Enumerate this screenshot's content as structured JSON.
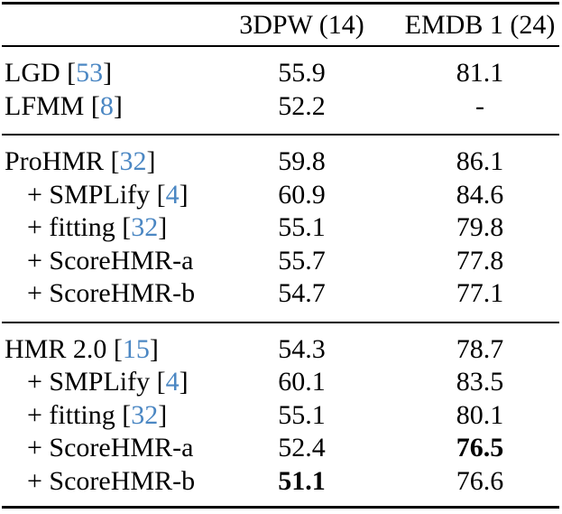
{
  "colors": {
    "text": "#000000",
    "citation_link": "#4b87c3",
    "rule": "#000000",
    "background": "#ffffff"
  },
  "table": {
    "header": {
      "method_col": "",
      "col1": "3DPW (14)",
      "col2": "EMDB 1 (24)"
    },
    "sections": [
      {
        "rows": [
          {
            "pre": "LGD [",
            "cite": "53",
            "post": "]",
            "indent": false,
            "v1": "55.9",
            "v1_bold": false,
            "v2": "81.1",
            "v2_bold": false
          },
          {
            "pre": "LFMM [",
            "cite": "8",
            "post": "]",
            "indent": false,
            "v1": "52.2",
            "v1_bold": false,
            "v2": "-",
            "v2_bold": false
          }
        ]
      },
      {
        "rows": [
          {
            "pre": "ProHMR [",
            "cite": "32",
            "post": "]",
            "indent": false,
            "v1": "59.8",
            "v1_bold": false,
            "v2": "86.1",
            "v2_bold": false
          },
          {
            "pre": "+ SMPLify [",
            "cite": "4",
            "post": "]",
            "indent": true,
            "v1": "60.9",
            "v1_bold": false,
            "v2": "84.6",
            "v2_bold": false
          },
          {
            "pre": "+ fitting [",
            "cite": "32",
            "post": "]",
            "indent": true,
            "v1": "55.1",
            "v1_bold": false,
            "v2": "79.8",
            "v2_bold": false
          },
          {
            "pre": "+ ScoreHMR-a",
            "cite": "",
            "post": "",
            "indent": true,
            "v1": "55.7",
            "v1_bold": false,
            "v2": "77.8",
            "v2_bold": false
          },
          {
            "pre": "+ ScoreHMR-b",
            "cite": "",
            "post": "",
            "indent": true,
            "v1": "54.7",
            "v1_bold": false,
            "v2": "77.1",
            "v2_bold": false
          }
        ]
      },
      {
        "rows": [
          {
            "pre": "HMR 2.0 [",
            "cite": "15",
            "post": "]",
            "indent": false,
            "v1": "54.3",
            "v1_bold": false,
            "v2": "78.7",
            "v2_bold": false
          },
          {
            "pre": "+ SMPLify [",
            "cite": "4",
            "post": "]",
            "indent": true,
            "v1": "60.1",
            "v1_bold": false,
            "v2": "83.5",
            "v2_bold": false
          },
          {
            "pre": "+ fitting [",
            "cite": "32",
            "post": "]",
            "indent": true,
            "v1": "55.1",
            "v1_bold": false,
            "v2": "80.1",
            "v2_bold": false
          },
          {
            "pre": "+ ScoreHMR-a",
            "cite": "",
            "post": "",
            "indent": true,
            "v1": "52.4",
            "v1_bold": false,
            "v2": "76.5",
            "v2_bold": true
          },
          {
            "pre": "+ ScoreHMR-b",
            "cite": "",
            "post": "",
            "indent": true,
            "v1": "51.1",
            "v1_bold": true,
            "v2": "76.6",
            "v2_bold": false
          }
        ]
      }
    ]
  }
}
